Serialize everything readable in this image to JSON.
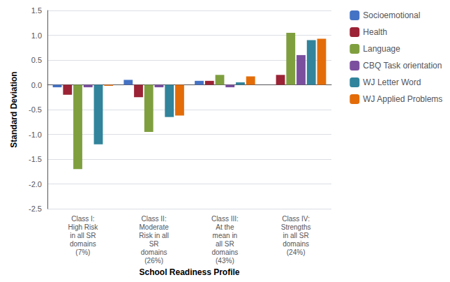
{
  "chart_data": {
    "type": "bar",
    "categories": [
      "Class I:\nHigh Risk\nin all SR\ndomains\n(7%)",
      "Class II:\nModerate\nRisk in all\nSR\ndomains\n(26%)",
      "Class III:\nAt the\nmean in\nall SR\ndomains\n(43%)",
      "Class IV:\nStrengths\nin all SR\ndomains\n(24%)"
    ],
    "series": [
      {
        "name": "Socioemotional",
        "color": "#4472C4",
        "values": [
          -0.05,
          0.1,
          0.08,
          0.0
        ]
      },
      {
        "name": "Health",
        "color": "#9B2335",
        "values": [
          -0.2,
          -0.25,
          0.08,
          0.2
        ]
      },
      {
        "name": "Language",
        "color": "#7F9F3F",
        "values": [
          -1.7,
          -0.95,
          0.2,
          1.05
        ]
      },
      {
        "name": "CBQ Task orientation",
        "color": "#7B4F9E",
        "values": [
          -0.05,
          -0.05,
          -0.05,
          0.6
        ]
      },
      {
        "name": "WJ Letter Word",
        "color": "#31849B",
        "values": [
          -1.2,
          -0.65,
          0.05,
          0.9
        ]
      },
      {
        "name": "WJ Applied Problems",
        "color": "#E36C09",
        "values": [
          -0.02,
          -0.62,
          0.17,
          0.93
        ]
      }
    ],
    "ylabel": "Standard Deviation",
    "xlabel": "School Readiness Profile",
    "ylim": [
      -2.5,
      1.5
    ],
    "yticks": [
      -2.5,
      {
        "value": -2.0,
        "label": "-2.0"
      },
      -1.5,
      {
        "value": -1.0,
        "label": "-1.0"
      },
      -0.5,
      {
        "value": 0.0,
        "label": "0.0"
      },
      0.5,
      {
        "value": 1.0,
        "label": "1.0"
      },
      1.5
    ],
    "grid": true,
    "legend": "right"
  }
}
